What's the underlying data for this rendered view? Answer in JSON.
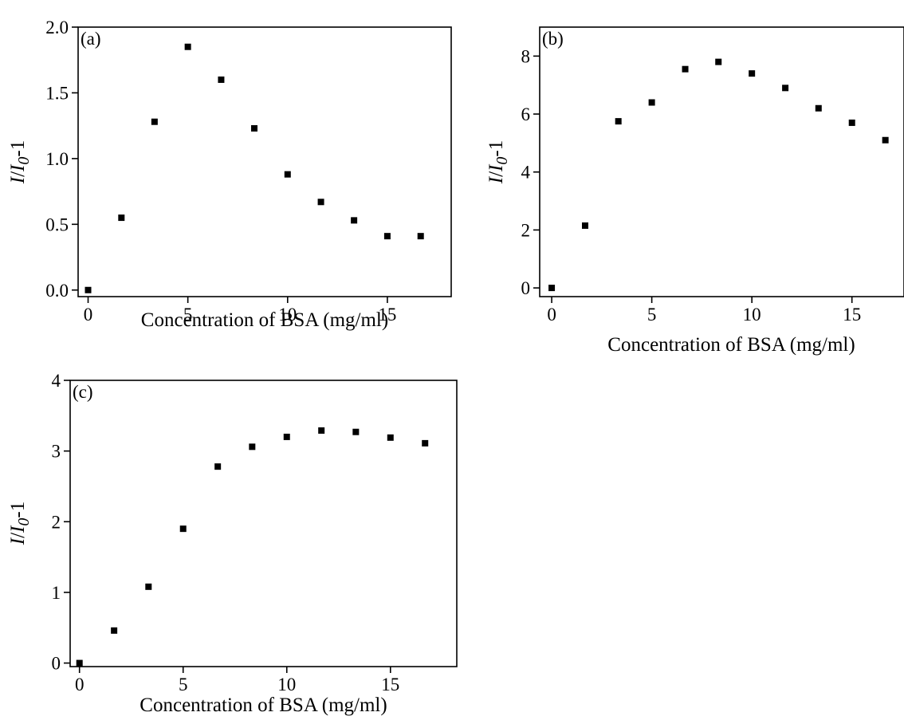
{
  "chart_data": [
    {
      "type": "scatter",
      "panel_label": "(a)",
      "xlabel": "Concentration of BSA (mg/ml)",
      "ylabel": {
        "i": "I",
        "slash": "/",
        "i0": "I",
        "sub": "0",
        "suffix": "-1"
      },
      "xlim": [
        -0.5,
        18.2
      ],
      "ylim": [
        -0.05,
        2.0
      ],
      "x_ticks": [
        0,
        5,
        10,
        15
      ],
      "x_tick_labels": [
        "0",
        "5",
        "10",
        "15"
      ],
      "y_ticks": [
        0,
        0.5,
        1.0,
        1.5,
        2.0
      ],
      "y_tick_labels": [
        "0.0",
        "0.5",
        "1.0",
        "1.5",
        "2.0"
      ],
      "x": [
        0,
        1.67,
        3.33,
        5.0,
        6.67,
        8.33,
        10.0,
        11.67,
        13.33,
        15.0,
        16.67
      ],
      "y": [
        0.0,
        0.55,
        1.28,
        1.85,
        1.6,
        1.23,
        0.88,
        0.67,
        0.53,
        0.41,
        0.41
      ],
      "grid": false,
      "marker": "square",
      "color": "#000000"
    },
    {
      "type": "scatter",
      "panel_label": "(b)",
      "xlabel": "Concentration of BSA (mg/ml)",
      "ylabel": {
        "i": "I",
        "slash": "/",
        "i0": "I",
        "sub": "0",
        "suffix": "-1"
      },
      "xlim": [
        -0.6,
        17.6
      ],
      "ylim": [
        -0.3,
        9.0
      ],
      "x_ticks": [
        0,
        5,
        10,
        15
      ],
      "x_tick_labels": [
        "0",
        "5",
        "10",
        "15"
      ],
      "y_ticks": [
        0,
        2,
        4,
        6,
        8
      ],
      "y_tick_labels": [
        "0",
        "2",
        "4",
        "6",
        "8"
      ],
      "x": [
        0,
        1.67,
        3.33,
        5.0,
        6.67,
        8.33,
        10.0,
        11.67,
        13.33,
        15.0,
        16.67
      ],
      "y": [
        0.0,
        2.15,
        5.75,
        6.4,
        7.55,
        7.8,
        7.4,
        6.9,
        6.2,
        5.7,
        5.1
      ],
      "grid": false,
      "marker": "square",
      "color": "#000000"
    },
    {
      "type": "scatter",
      "panel_label": "(c)",
      "xlabel": "Concentration of BSA (mg/ml)",
      "ylabel": {
        "i": "I",
        "slash": "/",
        "i0": "I",
        "sub": "0",
        "suffix": "-1"
      },
      "xlim": [
        -0.45,
        18.2
      ],
      "ylim": [
        -0.05,
        4.0
      ],
      "x_ticks": [
        0,
        5,
        10,
        15
      ],
      "x_tick_labels": [
        "0",
        "5",
        "10",
        "15"
      ],
      "y_ticks": [
        0,
        1,
        2,
        3,
        4
      ],
      "y_tick_labels": [
        "0",
        "1",
        "2",
        "3",
        "4"
      ],
      "x": [
        0,
        1.67,
        3.33,
        5.0,
        6.67,
        8.33,
        10.0,
        11.67,
        13.33,
        15.0,
        16.67
      ],
      "y": [
        0.0,
        0.46,
        1.08,
        1.9,
        2.78,
        3.06,
        3.2,
        3.29,
        3.27,
        3.19,
        3.11
      ],
      "grid": false,
      "marker": "square",
      "color": "#000000"
    }
  ]
}
